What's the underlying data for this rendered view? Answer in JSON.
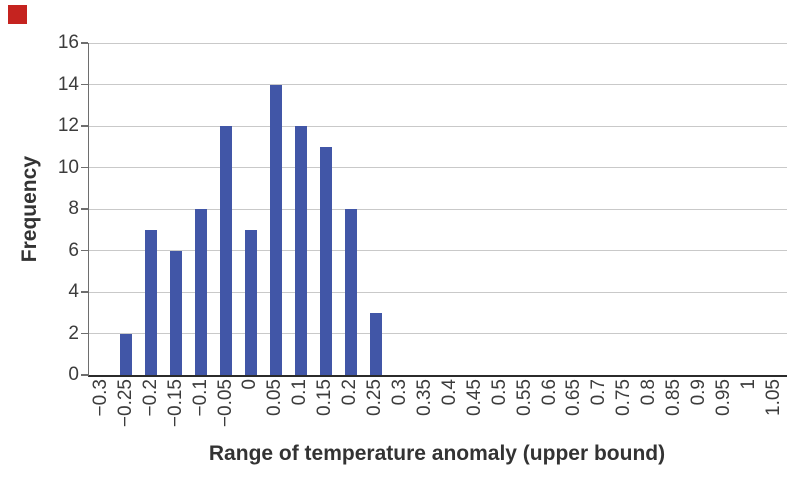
{
  "chart_data": {
    "type": "bar",
    "title": "",
    "xlabel": "Range of temperature anomaly (upper bound)",
    "ylabel": "Frequency",
    "categories": [
      "−0.3",
      "−0.25",
      "−0.2",
      "−0.15",
      "−0.1",
      "−0.05",
      "0",
      "0.05",
      "0.1",
      "0.15",
      "0.2",
      "0.25",
      "0.3",
      "0.35",
      "0.4",
      "0.45",
      "0.5",
      "0.55",
      "0.6",
      "0.65",
      "0.7",
      "0.75",
      "0.8",
      "0.85",
      "0.9",
      "0.95",
      "1",
      "1.05"
    ],
    "values": [
      0,
      2,
      7,
      6,
      8,
      12,
      7,
      14,
      12,
      11,
      8,
      3,
      0,
      0,
      0,
      0,
      0,
      0,
      0,
      0,
      0,
      0,
      0,
      0,
      0,
      0,
      0,
      0
    ],
    "ylim": [
      0,
      16
    ],
    "yticks": [
      0,
      2,
      4,
      6,
      8,
      10,
      12,
      14,
      16
    ],
    "grid": "horizontal",
    "legend": "none",
    "bar_color": "#4156a7",
    "grid_color": "#c9c9c9",
    "axis_line_color": "#6e6e6e",
    "baseline_color": "#2b2b2b",
    "tick_text_color": "#3c3c3c",
    "title_text_color": "#333333"
  },
  "decorations": {
    "red_marker_color": "#c5231f"
  }
}
